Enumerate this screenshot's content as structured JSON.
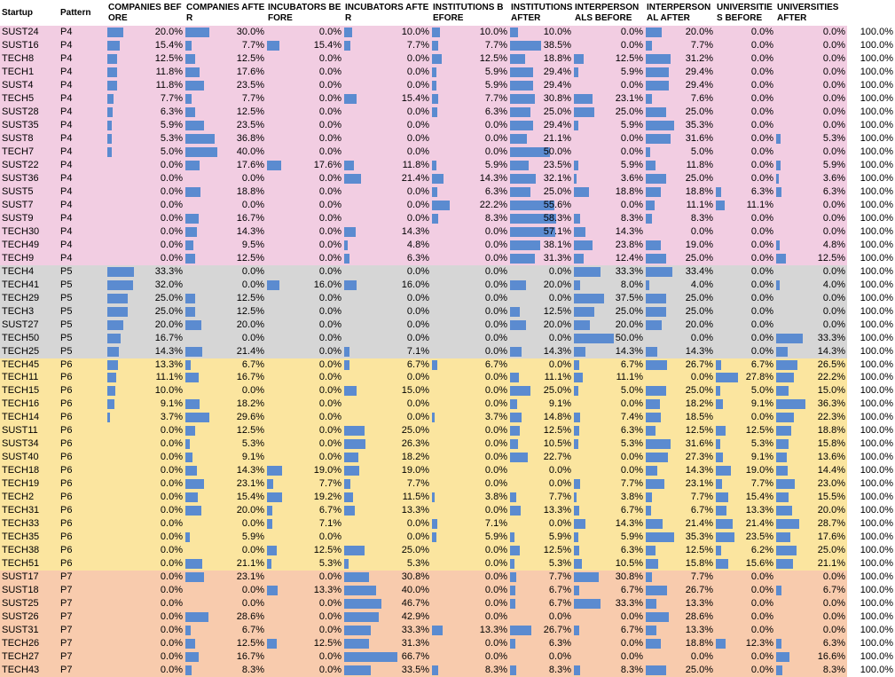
{
  "colors": {
    "P4": "#f2cde2",
    "P5": "#d6d6d6",
    "P6": "#fbe59f",
    "P7": "#f8cbad",
    "bar": "#5b8bd0"
  },
  "headers": [
    {
      "key": "startup",
      "label": "Startup"
    },
    {
      "key": "pattern",
      "label": "Pattern"
    },
    {
      "key": "companies_before",
      "label": "COMPANIES BEFORE"
    },
    {
      "key": "companies_after",
      "label": "COMPANIES AFTER"
    },
    {
      "key": "incubators_before",
      "label": "INCUBATORS BEFORE"
    },
    {
      "key": "incubators_after",
      "label": "INCUBATORS AFTER"
    },
    {
      "key": "institutions_before",
      "label": "INSTITUTIONS BEFORE"
    },
    {
      "key": "institutions_after",
      "label": "INSTITUTIONS AFTER"
    },
    {
      "key": "interpersonals_before",
      "label": "INTERPERSONALS BEFORE"
    },
    {
      "key": "interpersonal_after",
      "label": "INTERPERSONAL AFTER"
    },
    {
      "key": "universities_before",
      "label": "UNIVERSITIES BEFORE"
    },
    {
      "key": "universities_after",
      "label": "UNIVERSITIES AFTER"
    },
    {
      "key": "total",
      "label": ""
    }
  ],
  "rows": [
    [
      "SUST24",
      "P4",
      "20.0%",
      "30.0%",
      "0.0%",
      "10.0%",
      "10.0%",
      "10.0%",
      "0.0%",
      "20.0%",
      "0.0%",
      "0.0%",
      "100.0%"
    ],
    [
      "SUST16",
      "P4",
      "15.4%",
      "7.7%",
      "15.4%",
      "7.7%",
      "7.7%",
      "38.5%",
      "0.0%",
      "7.7%",
      "0.0%",
      "0.0%",
      "100.0%"
    ],
    [
      "TECH8",
      "P4",
      "12.5%",
      "12.5%",
      "0.0%",
      "0.0%",
      "12.5%",
      "18.8%",
      "12.5%",
      "31.2%",
      "0.0%",
      "0.0%",
      "100.0%"
    ],
    [
      "TECH1",
      "P4",
      "11.8%",
      "17.6%",
      "0.0%",
      "0.0%",
      "5.9%",
      "29.4%",
      "5.9%",
      "29.4%",
      "0.0%",
      "0.0%",
      "100.0%"
    ],
    [
      "SUST4",
      "P4",
      "11.8%",
      "23.5%",
      "0.0%",
      "0.0%",
      "5.9%",
      "29.4%",
      "0.0%",
      "29.4%",
      "0.0%",
      "0.0%",
      "100.0%"
    ],
    [
      "TECH5",
      "P4",
      "7.7%",
      "7.7%",
      "0.0%",
      "15.4%",
      "7.7%",
      "30.8%",
      "23.1%",
      "7.6%",
      "0.0%",
      "0.0%",
      "100.0%"
    ],
    [
      "SUST28",
      "P4",
      "6.3%",
      "12.5%",
      "0.0%",
      "0.0%",
      "6.3%",
      "25.0%",
      "25.0%",
      "25.0%",
      "0.0%",
      "0.0%",
      "100.0%"
    ],
    [
      "SUST35",
      "P4",
      "5.9%",
      "23.5%",
      "0.0%",
      "0.0%",
      "0.0%",
      "29.4%",
      "5.9%",
      "35.3%",
      "0.0%",
      "0.0%",
      "100.0%"
    ],
    [
      "SUST8",
      "P4",
      "5.3%",
      "36.8%",
      "0.0%",
      "0.0%",
      "0.0%",
      "21.1%",
      "0.0%",
      "31.6%",
      "0.0%",
      "5.3%",
      "100.0%"
    ],
    [
      "TECH7",
      "P4",
      "5.0%",
      "40.0%",
      "0.0%",
      "0.0%",
      "0.0%",
      "50.0%",
      "0.0%",
      "5.0%",
      "0.0%",
      "0.0%",
      "100.0%"
    ],
    [
      "SUST22",
      "P4",
      "0.0%",
      "17.6%",
      "17.6%",
      "11.8%",
      "5.9%",
      "23.5%",
      "5.9%",
      "11.8%",
      "0.0%",
      "5.9%",
      "100.0%"
    ],
    [
      "SUST36",
      "P4",
      "0.0%",
      "0.0%",
      "0.0%",
      "21.4%",
      "14.3%",
      "32.1%",
      "3.6%",
      "25.0%",
      "0.0%",
      "3.6%",
      "100.0%"
    ],
    [
      "SUST5",
      "P4",
      "0.0%",
      "18.8%",
      "0.0%",
      "0.0%",
      "6.3%",
      "25.0%",
      "18.8%",
      "18.8%",
      "6.3%",
      "6.3%",
      "100.0%"
    ],
    [
      "SUST7",
      "P4",
      "0.0%",
      "0.0%",
      "0.0%",
      "0.0%",
      "22.2%",
      "55.6%",
      "0.0%",
      "11.1%",
      "11.1%",
      "0.0%",
      "100.0%"
    ],
    [
      "SUST9",
      "P4",
      "0.0%",
      "16.7%",
      "0.0%",
      "0.0%",
      "8.3%",
      "58.3%",
      "8.3%",
      "8.3%",
      "0.0%",
      "0.0%",
      "100.0%"
    ],
    [
      "TECH30",
      "P4",
      "0.0%",
      "14.3%",
      "0.0%",
      "14.3%",
      "0.0%",
      "57.1%",
      "14.3%",
      "0.0%",
      "0.0%",
      "0.0%",
      "100.0%"
    ],
    [
      "TECH49",
      "P4",
      "0.0%",
      "9.5%",
      "0.0%",
      "4.8%",
      "0.0%",
      "38.1%",
      "23.8%",
      "19.0%",
      "0.0%",
      "4.8%",
      "100.0%"
    ],
    [
      "TECH9",
      "P4",
      "0.0%",
      "12.5%",
      "0.0%",
      "6.3%",
      "0.0%",
      "31.3%",
      "12.4%",
      "25.0%",
      "0.0%",
      "12.5%",
      "100.0%"
    ],
    [
      "TECH4",
      "P5",
      "33.3%",
      "0.0%",
      "0.0%",
      "0.0%",
      "0.0%",
      "0.0%",
      "33.3%",
      "33.4%",
      "0.0%",
      "0.0%",
      "100.0%"
    ],
    [
      "TECH41",
      "P5",
      "32.0%",
      "0.0%",
      "16.0%",
      "16.0%",
      "0.0%",
      "20.0%",
      "8.0%",
      "4.0%",
      "0.0%",
      "4.0%",
      "100.0%"
    ],
    [
      "TECH29",
      "P5",
      "25.0%",
      "12.5%",
      "0.0%",
      "0.0%",
      "0.0%",
      "0.0%",
      "37.5%",
      "25.0%",
      "0.0%",
      "0.0%",
      "100.0%"
    ],
    [
      "TECH3",
      "P5",
      "25.0%",
      "12.5%",
      "0.0%",
      "0.0%",
      "0.0%",
      "12.5%",
      "25.0%",
      "25.0%",
      "0.0%",
      "0.0%",
      "100.0%"
    ],
    [
      "SUST27",
      "P5",
      "20.0%",
      "20.0%",
      "0.0%",
      "0.0%",
      "0.0%",
      "20.0%",
      "20.0%",
      "20.0%",
      "0.0%",
      "0.0%",
      "100.0%"
    ],
    [
      "TECH50",
      "P5",
      "16.7%",
      "0.0%",
      "0.0%",
      "0.0%",
      "0.0%",
      "0.0%",
      "50.0%",
      "0.0%",
      "0.0%",
      "33.3%",
      "100.0%"
    ],
    [
      "TECH25",
      "P5",
      "14.3%",
      "21.4%",
      "0.0%",
      "7.1%",
      "0.0%",
      "14.3%",
      "14.3%",
      "14.3%",
      "0.0%",
      "14.3%",
      "100.0%"
    ],
    [
      "TECH45",
      "P6",
      "13.3%",
      "6.7%",
      "0.0%",
      "6.7%",
      "6.7%",
      "0.0%",
      "6.7%",
      "26.7%",
      "6.7%",
      "26.5%",
      "100.0%"
    ],
    [
      "TECH11",
      "P6",
      "11.1%",
      "16.7%",
      "0.0%",
      "0.0%",
      "0.0%",
      "11.1%",
      "11.1%",
      "0.0%",
      "27.8%",
      "22.2%",
      "100.0%"
    ],
    [
      "TECH15",
      "P6",
      "10.0%",
      "0.0%",
      "0.0%",
      "15.0%",
      "0.0%",
      "25.0%",
      "5.0%",
      "25.0%",
      "5.0%",
      "15.0%",
      "100.0%"
    ],
    [
      "TECH16",
      "P6",
      "9.1%",
      "18.2%",
      "0.0%",
      "0.0%",
      "0.0%",
      "9.1%",
      "0.0%",
      "18.2%",
      "9.1%",
      "36.3%",
      "100.0%"
    ],
    [
      "TECH14",
      "P6",
      "3.7%",
      "29.6%",
      "0.0%",
      "0.0%",
      "3.7%",
      "14.8%",
      "7.4%",
      "18.5%",
      "0.0%",
      "22.3%",
      "100.0%"
    ],
    [
      "SUST11",
      "P6",
      "0.0%",
      "12.5%",
      "0.0%",
      "25.0%",
      "0.0%",
      "12.5%",
      "6.3%",
      "12.5%",
      "12.5%",
      "18.8%",
      "100.0%"
    ],
    [
      "SUST34",
      "P6",
      "0.0%",
      "5.3%",
      "0.0%",
      "26.3%",
      "0.0%",
      "10.5%",
      "5.3%",
      "31.6%",
      "5.3%",
      "15.8%",
      "100.0%"
    ],
    [
      "SUST40",
      "P6",
      "0.0%",
      "9.1%",
      "0.0%",
      "18.2%",
      "0.0%",
      "22.7%",
      "0.0%",
      "27.3%",
      "9.1%",
      "13.6%",
      "100.0%"
    ],
    [
      "TECH18",
      "P6",
      "0.0%",
      "14.3%",
      "19.0%",
      "19.0%",
      "0.0%",
      "0.0%",
      "0.0%",
      "14.3%",
      "19.0%",
      "14.4%",
      "100.0%"
    ],
    [
      "TECH19",
      "P6",
      "0.0%",
      "23.1%",
      "7.7%",
      "7.7%",
      "0.0%",
      "0.0%",
      "7.7%",
      "23.1%",
      "7.7%",
      "23.0%",
      "100.0%"
    ],
    [
      "TECH2",
      "P6",
      "0.0%",
      "15.4%",
      "19.2%",
      "11.5%",
      "3.8%",
      "7.7%",
      "3.8%",
      "7.7%",
      "15.4%",
      "15.5%",
      "100.0%"
    ],
    [
      "TECH31",
      "P6",
      "0.0%",
      "20.0%",
      "6.7%",
      "13.3%",
      "0.0%",
      "13.3%",
      "6.7%",
      "6.7%",
      "13.3%",
      "20.0%",
      "100.0%"
    ],
    [
      "TECH33",
      "P6",
      "0.0%",
      "0.0%",
      "7.1%",
      "0.0%",
      "7.1%",
      "0.0%",
      "14.3%",
      "21.4%",
      "21.4%",
      "28.7%",
      "100.0%"
    ],
    [
      "TECH35",
      "P6",
      "0.0%",
      "5.9%",
      "0.0%",
      "0.0%",
      "5.9%",
      "5.9%",
      "5.9%",
      "35.3%",
      "23.5%",
      "17.6%",
      "100.0%"
    ],
    [
      "TECH38",
      "P6",
      "0.0%",
      "0.0%",
      "12.5%",
      "25.0%",
      "0.0%",
      "12.5%",
      "6.3%",
      "12.5%",
      "6.2%",
      "25.0%",
      "100.0%"
    ],
    [
      "TECH51",
      "P6",
      "0.0%",
      "21.1%",
      "5.3%",
      "5.3%",
      "0.0%",
      "5.3%",
      "10.5%",
      "15.8%",
      "15.6%",
      "21.1%",
      "100.0%"
    ],
    [
      "SUST17",
      "P7",
      "0.0%",
      "23.1%",
      "0.0%",
      "30.8%",
      "0.0%",
      "7.7%",
      "30.8%",
      "7.7%",
      "0.0%",
      "0.0%",
      "100.0%"
    ],
    [
      "SUST18",
      "P7",
      "0.0%",
      "0.0%",
      "13.3%",
      "40.0%",
      "0.0%",
      "6.7%",
      "6.7%",
      "26.7%",
      "0.0%",
      "6.7%",
      "100.0%"
    ],
    [
      "SUST25",
      "P7",
      "0.0%",
      "0.0%",
      "0.0%",
      "46.7%",
      "0.0%",
      "6.7%",
      "33.3%",
      "13.3%",
      "0.0%",
      "0.0%",
      "100.0%"
    ],
    [
      "SUST26",
      "P7",
      "0.0%",
      "28.6%",
      "0.0%",
      "42.9%",
      "0.0%",
      "0.0%",
      "0.0%",
      "28.6%",
      "0.0%",
      "0.0%",
      "100.0%"
    ],
    [
      "SUST31",
      "P7",
      "0.0%",
      "6.7%",
      "0.0%",
      "33.3%",
      "13.3%",
      "26.7%",
      "6.7%",
      "13.3%",
      "0.0%",
      "0.0%",
      "100.0%"
    ],
    [
      "TECH26",
      "P7",
      "0.0%",
      "12.5%",
      "12.5%",
      "31.3%",
      "0.0%",
      "6.3%",
      "0.0%",
      "18.8%",
      "12.3%",
      "6.3%",
      "100.0%"
    ],
    [
      "TECH27",
      "P7",
      "0.0%",
      "16.7%",
      "0.0%",
      "66.7%",
      "0.0%",
      "0.0%",
      "0.0%",
      "0.0%",
      "0.0%",
      "16.6%",
      "100.0%"
    ],
    [
      "TECH43",
      "P7",
      "0.0%",
      "8.3%",
      "0.0%",
      "33.5%",
      "8.3%",
      "8.3%",
      "8.3%",
      "25.0%",
      "0.0%",
      "8.3%",
      "100.0%"
    ]
  ]
}
